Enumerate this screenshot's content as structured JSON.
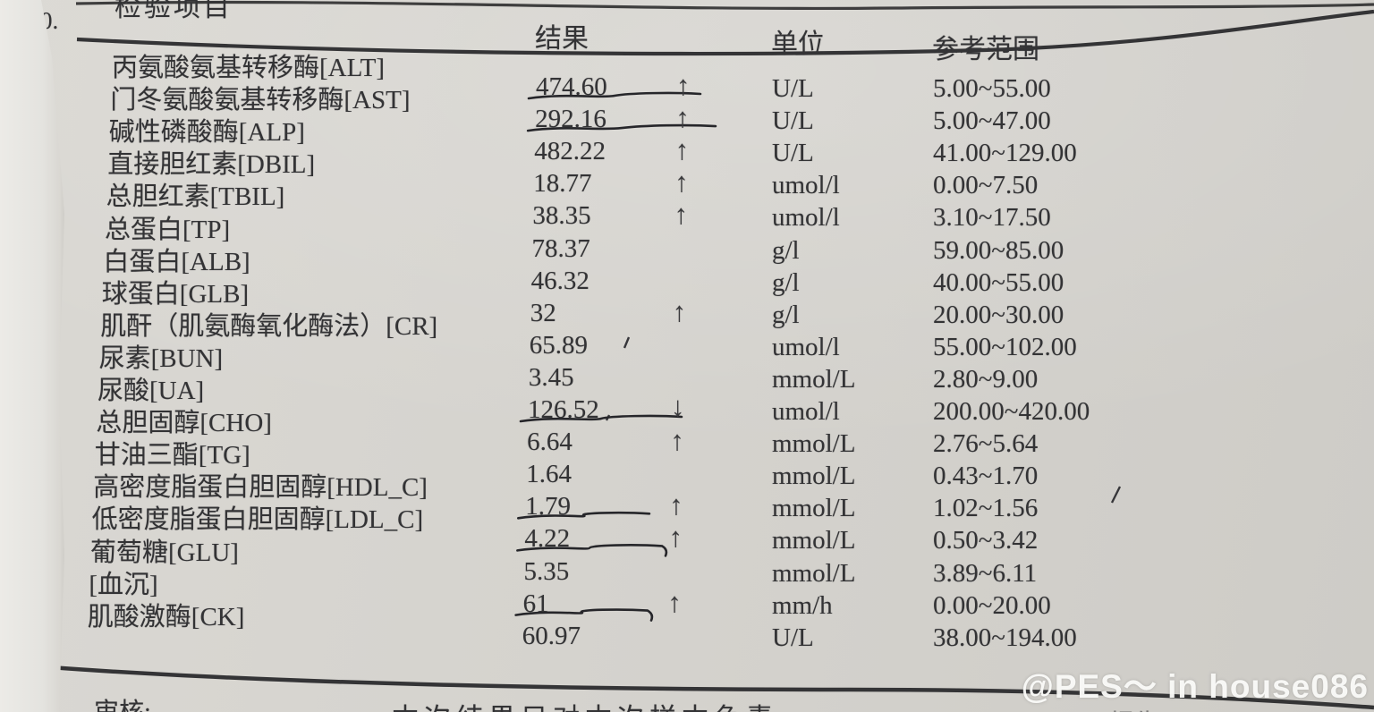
{
  "document": {
    "corner_label": "0.",
    "watermark": "@PES～ in house086",
    "header": {
      "item": "检验项目",
      "result": "结果",
      "unit": "单位",
      "range": "参考范围"
    },
    "footer": {
      "review_label": "审核:",
      "disclaimer": "本次结果只对本次样本负责",
      "report_label": "报告"
    },
    "rows": [
      {
        "name": "丙氨酸氨基转移酶[ALT]",
        "result": "474.60",
        "flag": "up",
        "unit": "U/L",
        "range": "5.00~55.00",
        "underline": true
      },
      {
        "name": "门冬氨酸氨基转移酶[AST]",
        "result": "292.16",
        "flag": "up",
        "unit": "U/L",
        "range": "5.00~47.00",
        "underline": true
      },
      {
        "name": "碱性磷酸酶[ALP]",
        "result": "482.22",
        "flag": "up",
        "unit": "U/L",
        "range": "41.00~129.00",
        "underline": false
      },
      {
        "name": "直接胆红素[DBIL]",
        "result": "18.77",
        "flag": "up",
        "unit": "umol/l",
        "range": "0.00~7.50",
        "underline": false
      },
      {
        "name": "总胆红素[TBIL]",
        "result": "38.35",
        "flag": "up",
        "unit": "umol/l",
        "range": "3.10~17.50",
        "underline": false
      },
      {
        "name": "总蛋白[TP]",
        "result": "78.37",
        "flag": "",
        "unit": "g/l",
        "range": "59.00~85.00",
        "underline": false
      },
      {
        "name": "白蛋白[ALB]",
        "result": "46.32",
        "flag": "",
        "unit": "g/l",
        "range": "40.00~55.00",
        "underline": false
      },
      {
        "name": "球蛋白[GLB]",
        "result": "32",
        "flag": "up",
        "unit": "g/l",
        "range": "20.00~30.00",
        "underline": false
      },
      {
        "name": "肌酐（肌氨酶氧化酶法）[CR]",
        "result": "65.89",
        "flag": "",
        "unit": "umol/l",
        "range": "55.00~102.00",
        "underline": false
      },
      {
        "name": "尿素[BUN]",
        "result": "3.45",
        "flag": "",
        "unit": "mmol/L",
        "range": "2.80~9.00",
        "underline": false
      },
      {
        "name": "尿酸[UA]",
        "result": "126.52",
        "flag": "down",
        "unit": "umol/l",
        "range": "200.00~420.00",
        "underline": true
      },
      {
        "name": "总胆固醇[CHO]",
        "result": "6.64",
        "flag": "up",
        "unit": "mmol/L",
        "range": "2.76~5.64",
        "underline": false
      },
      {
        "name": "甘油三酯[TG]",
        "result": "1.64",
        "flag": "",
        "unit": "mmol/L",
        "range": "0.43~1.70",
        "underline": false
      },
      {
        "name": "高密度脂蛋白胆固醇[HDL_C]",
        "result": "1.79",
        "flag": "up",
        "unit": "mmol/L",
        "range": "1.02~1.56",
        "underline": true
      },
      {
        "name": "低密度脂蛋白胆固醇[LDL_C]",
        "result": "4.22",
        "flag": "up",
        "unit": "mmol/L",
        "range": "0.50~3.42",
        "underline": true
      },
      {
        "name": "葡萄糖[GLU]",
        "result": "5.35",
        "flag": "",
        "unit": "mmol/L",
        "range": "3.89~6.11",
        "underline": false
      },
      {
        "name": "[血沉]",
        "result": "61",
        "flag": "up",
        "unit": "mm/h",
        "range": "0.00~20.00",
        "underline": true
      },
      {
        "name": "肌酸激酶[CK]",
        "result": "60.97",
        "flag": "",
        "unit": "U/L",
        "range": "38.00~194.00",
        "underline": false
      }
    ]
  },
  "colors": {
    "paper": "#d5d3ce",
    "ink": "#333335",
    "pen": "#26262a",
    "watermark": "#fbfbf9"
  }
}
